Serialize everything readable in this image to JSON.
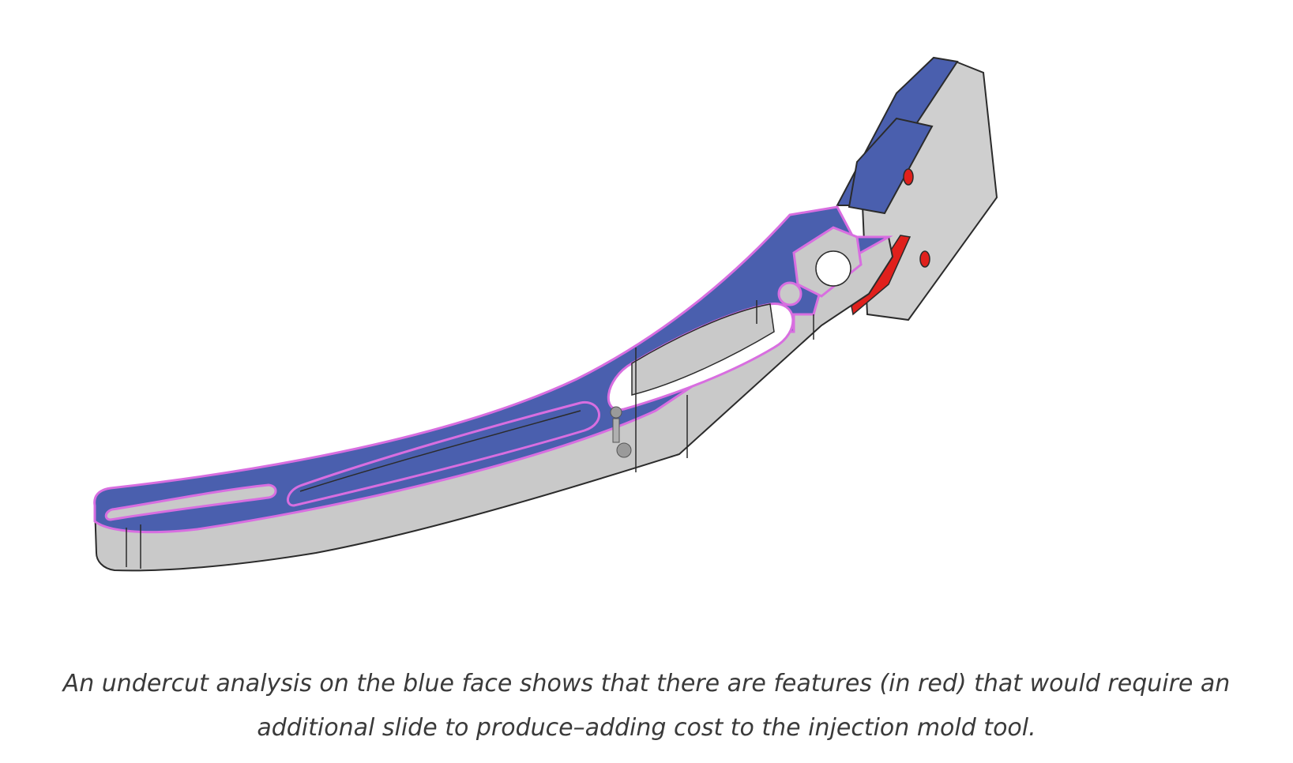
{
  "figure": {
    "icon": "cad-bracket-undercut-render",
    "colors": {
      "analysis_face": "#4a5fae",
      "undercut": "#e0201c",
      "side_walls": "#c9c9c9",
      "highlight_edge": "#d86ee0",
      "outline": "#2b2b2b"
    }
  },
  "caption": {
    "text": "An undercut analysis on the blue face shows that there are features (in red) that would require an additional slide to produce–adding cost to the injection mold tool."
  }
}
